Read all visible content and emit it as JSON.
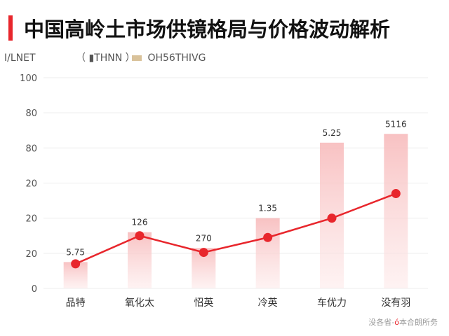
{
  "title": "中国高岭土市场供镜格局与价格波动解析",
  "legend": [
    {
      "label": "I/LNET",
      "color": "#cccccc"
    },
    {
      "label": "（ ▮THNN ）",
      "color": "#555555"
    },
    {
      "label": "OH56THIVG",
      "color": "#d9c29a"
    }
  ],
  "watermark": {
    "pre": "没各省-",
    "logo": "ó",
    "post": "本合朗所务"
  },
  "colors": {
    "accent": "#e8262c",
    "bar_top": "#f7b7b8",
    "bar_bottom": "#fdeaea"
  },
  "chart_data": {
    "type": "bar",
    "categories": [
      "品特",
      "氧化太",
      "怊英",
      "冷英",
      "车优力",
      "没有羽"
    ],
    "yticks": [
      "100",
      "80",
      "80",
      "20",
      "20",
      "20",
      "0"
    ],
    "ylim": [
      0,
      120
    ],
    "grid": true,
    "series": [
      {
        "type": "bar",
        "values": [
          15,
          32,
          23,
          40,
          83,
          88
        ]
      },
      {
        "type": "line",
        "values": [
          14,
          30,
          20.5,
          29,
          40,
          54
        ],
        "labels": [
          "5.75",
          "126",
          "270",
          "1.35",
          "5.25",
          "5116"
        ]
      }
    ]
  }
}
